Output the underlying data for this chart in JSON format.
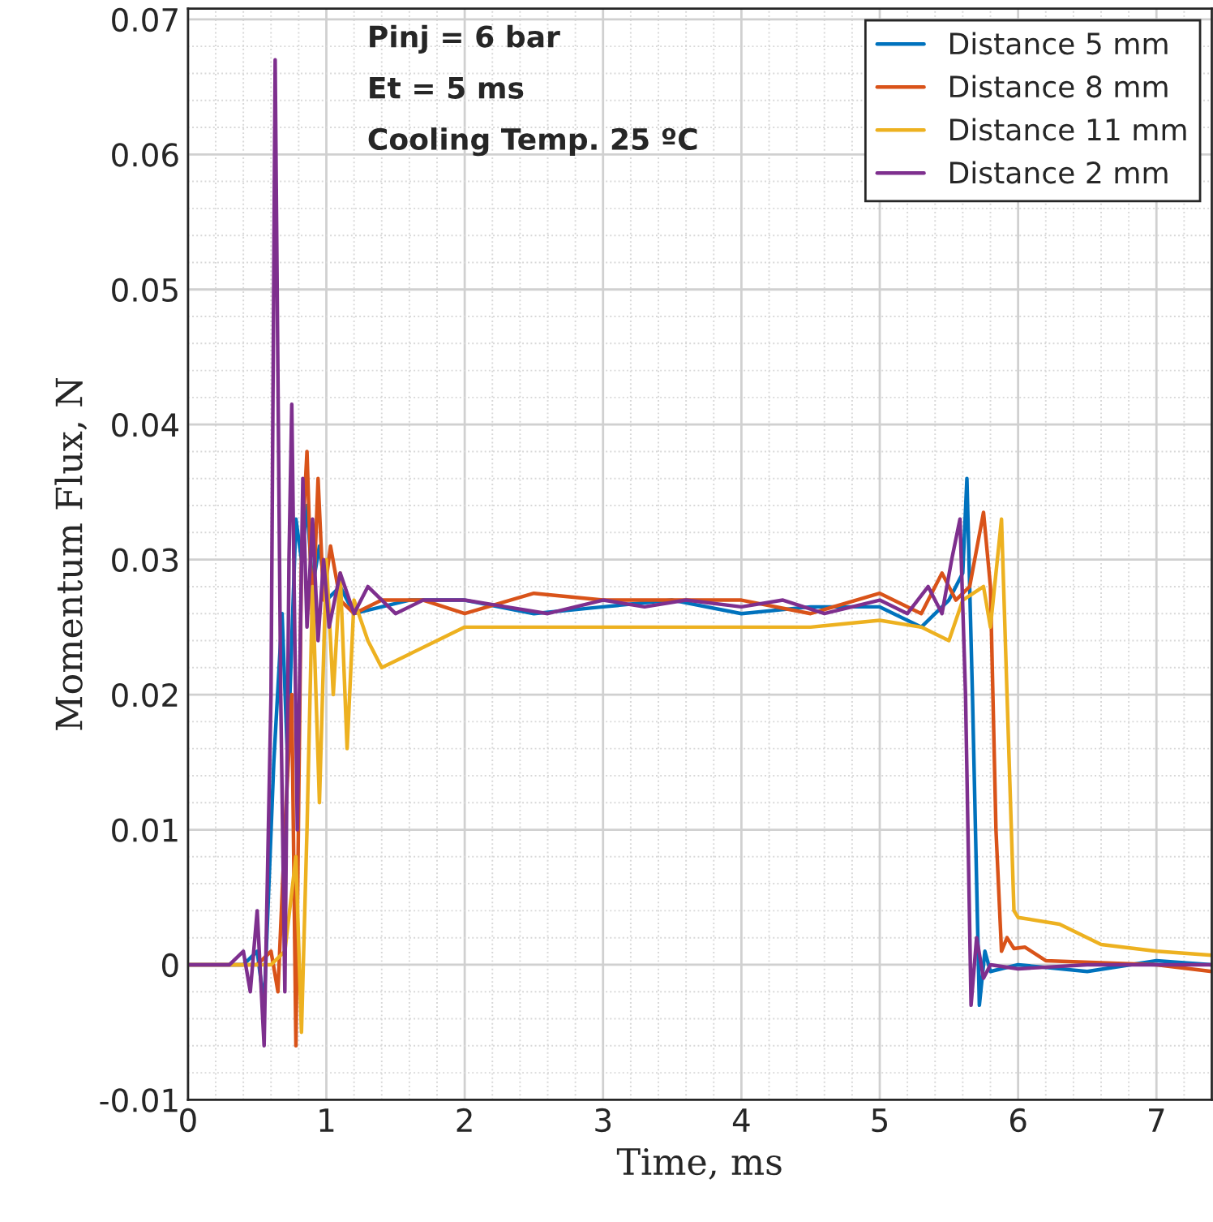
{
  "chart_data": {
    "type": "line",
    "xlabel": "Time, ms",
    "ylabel": "Momentum Flux, N",
    "annotations": [
      "Pinj = 6 bar",
      "Et = 5 ms",
      "Cooling Temp. 25 ºC"
    ],
    "xlim": [
      0,
      7.4
    ],
    "ylim": [
      -0.01,
      0.0708
    ],
    "xticks": [
      0,
      1,
      2,
      3,
      4,
      5,
      6,
      7
    ],
    "yticks": [
      -0.01,
      0,
      0.01,
      0.02,
      0.03,
      0.04,
      0.05,
      0.06,
      0.07
    ],
    "grid": true,
    "legend": "top right",
    "line_style": "solid",
    "marker": "none",
    "series": [
      {
        "name": "Distance 5 mm",
        "color": "#0072bd",
        "x": [
          0,
          0.4,
          0.5,
          0.55,
          0.62,
          0.68,
          0.72,
          0.78,
          0.82,
          0.86,
          0.9,
          0.95,
          1.0,
          1.1,
          1.2,
          1.4,
          1.6,
          2.0,
          2.5,
          3.0,
          3.5,
          4.0,
          4.5,
          5.0,
          5.3,
          5.5,
          5.6,
          5.63,
          5.67,
          5.72,
          5.76,
          5.8,
          6.0,
          6.5,
          7.0,
          7.4
        ],
        "values": [
          0,
          0,
          0.001,
          -0.003,
          0.015,
          0.026,
          0.015,
          0.033,
          0.03,
          0.034,
          0.028,
          0.031,
          0.027,
          0.028,
          0.026,
          0.0265,
          0.027,
          0.027,
          0.026,
          0.0265,
          0.027,
          0.026,
          0.0265,
          0.0265,
          0.025,
          0.027,
          0.029,
          0.036,
          0.02,
          -0.003,
          0.001,
          -0.0005,
          0,
          -0.0005,
          0.0003,
          0
        ]
      },
      {
        "name": "Distance 8 mm",
        "color": "#d95319",
        "x": [
          0,
          0.5,
          0.6,
          0.65,
          0.7,
          0.75,
          0.78,
          0.82,
          0.86,
          0.9,
          0.94,
          0.98,
          1.03,
          1.1,
          1.2,
          1.4,
          1.7,
          2.0,
          2.5,
          3.0,
          3.5,
          4.0,
          4.5,
          5.0,
          5.3,
          5.45,
          5.55,
          5.65,
          5.75,
          5.8,
          5.84,
          5.88,
          5.92,
          5.97,
          6.05,
          6.2,
          7.0,
          7.4
        ],
        "values": [
          0,
          0,
          0.001,
          -0.002,
          0.01,
          0.02,
          -0.006,
          0.03,
          0.038,
          0.025,
          0.036,
          0.027,
          0.031,
          0.027,
          0.026,
          0.027,
          0.027,
          0.026,
          0.0275,
          0.027,
          0.027,
          0.027,
          0.026,
          0.0275,
          0.026,
          0.029,
          0.027,
          0.028,
          0.0335,
          0.028,
          0.01,
          0.001,
          0.002,
          0.0012,
          0.0013,
          0.0003,
          0,
          -0.0005
        ]
      },
      {
        "name": "Distance 11 mm",
        "color": "#edb120",
        "x": [
          0,
          0.6,
          0.7,
          0.78,
          0.82,
          0.86,
          0.9,
          0.95,
          1.0,
          1.05,
          1.1,
          1.15,
          1.2,
          1.3,
          1.4,
          1.6,
          1.8,
          2.0,
          2.5,
          3.0,
          3.5,
          4.0,
          4.5,
          5.0,
          5.3,
          5.5,
          5.6,
          5.75,
          5.8,
          5.88,
          5.92,
          5.97,
          6.0,
          6.3,
          6.6,
          7.0,
          7.4
        ],
        "values": [
          0,
          0,
          0.001,
          0.008,
          -0.005,
          0.01,
          0.028,
          0.012,
          0.03,
          0.02,
          0.029,
          0.016,
          0.027,
          0.024,
          0.022,
          0.023,
          0.024,
          0.025,
          0.025,
          0.025,
          0.025,
          0.025,
          0.025,
          0.0255,
          0.025,
          0.024,
          0.027,
          0.028,
          0.025,
          0.033,
          0.02,
          0.004,
          0.0035,
          0.003,
          0.0015,
          0.001,
          0.0007
        ]
      },
      {
        "name": "Distance 2 mm",
        "color": "#7e2f8e",
        "x": [
          0,
          0.3,
          0.4,
          0.45,
          0.5,
          0.55,
          0.6,
          0.63,
          0.67,
          0.7,
          0.73,
          0.75,
          0.79,
          0.83,
          0.86,
          0.9,
          0.94,
          0.98,
          1.02,
          1.1,
          1.2,
          1.3,
          1.5,
          1.7,
          2.0,
          2.3,
          2.6,
          3.0,
          3.3,
          3.6,
          4.0,
          4.3,
          4.6,
          5.0,
          5.2,
          5.35,
          5.45,
          5.52,
          5.58,
          5.62,
          5.66,
          5.7,
          5.75,
          5.8,
          6.0,
          6.5,
          7.0,
          7.4
        ],
        "values": [
          0,
          0,
          0.001,
          -0.002,
          0.004,
          -0.006,
          0.02,
          0.067,
          0.02,
          -0.002,
          0.03,
          0.0415,
          0.01,
          0.036,
          0.025,
          0.033,
          0.024,
          0.03,
          0.025,
          0.029,
          0.026,
          0.028,
          0.026,
          0.027,
          0.027,
          0.0265,
          0.026,
          0.027,
          0.0265,
          0.027,
          0.0265,
          0.027,
          0.026,
          0.027,
          0.026,
          0.028,
          0.026,
          0.03,
          0.033,
          0.02,
          -0.003,
          0.002,
          -0.001,
          0,
          -0.0003,
          0,
          0,
          0
        ]
      }
    ]
  }
}
